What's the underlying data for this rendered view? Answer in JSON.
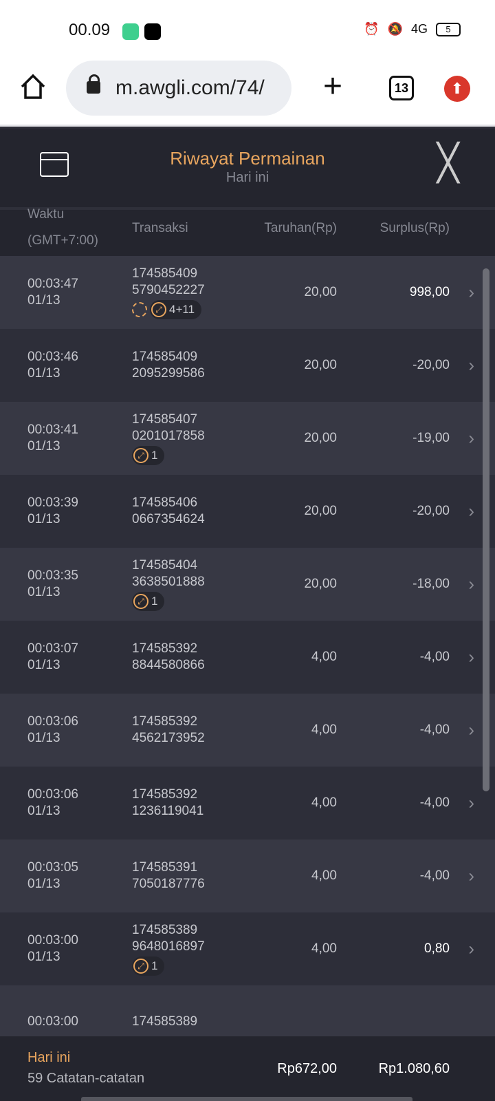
{
  "status_bar": {
    "time": "00.09",
    "network": "4G",
    "battery": "5"
  },
  "browser": {
    "url": "m.awgli.com/74/",
    "tab_count": "13"
  },
  "header": {
    "title": "Riwayat Permainan",
    "subtitle": "Hari ini"
  },
  "columns": {
    "time": "Waktu",
    "tz": "(GMT+7:00)",
    "tx": "Transaksi",
    "bet": "Taruhan(Rp)",
    "surplus": "Surplus(Rp)"
  },
  "rows": [
    {
      "time": "00:03:47",
      "date": "01/13",
      "tx1": "174585409",
      "tx2": "5790452227",
      "bet": "20,00",
      "surplus": "998,00",
      "positive": true,
      "refresh": true,
      "badge": "4+11"
    },
    {
      "time": "00:03:46",
      "date": "01/13",
      "tx1": "174585409",
      "tx2": "2095299586",
      "bet": "20,00",
      "surplus": "-20,00"
    },
    {
      "time": "00:03:41",
      "date": "01/13",
      "tx1": "174585407",
      "tx2": "0201017858",
      "bet": "20,00",
      "surplus": "-19,00",
      "badge": "1"
    },
    {
      "time": "00:03:39",
      "date": "01/13",
      "tx1": "174585406",
      "tx2": "0667354624",
      "bet": "20,00",
      "surplus": "-20,00"
    },
    {
      "time": "00:03:35",
      "date": "01/13",
      "tx1": "174585404",
      "tx2": "3638501888",
      "bet": "20,00",
      "surplus": "-18,00",
      "badge": "1"
    },
    {
      "time": "00:03:07",
      "date": "01/13",
      "tx1": "174585392",
      "tx2": "8844580866",
      "bet": "4,00",
      "surplus": "-4,00"
    },
    {
      "time": "00:03:06",
      "date": "01/13",
      "tx1": "174585392",
      "tx2": "4562173952",
      "bet": "4,00",
      "surplus": "-4,00"
    },
    {
      "time": "00:03:06",
      "date": "01/13",
      "tx1": "174585392",
      "tx2": "1236119041",
      "bet": "4,00",
      "surplus": "-4,00"
    },
    {
      "time": "00:03:05",
      "date": "01/13",
      "tx1": "174585391",
      "tx2": "7050187776",
      "bet": "4,00",
      "surplus": "-4,00"
    },
    {
      "time": "00:03:00",
      "date": "01/13",
      "tx1": "174585389",
      "tx2": "9648016897",
      "bet": "4,00",
      "surplus": "0,80",
      "positive": true,
      "badge": "1"
    },
    {
      "time": "00:03:00",
      "date": "",
      "tx1": "174585389",
      "tx2": "",
      "bet": "",
      "surplus": ""
    }
  ],
  "footer": {
    "period": "Hari ini",
    "records": "59 Catatan-catatan",
    "total_bet": "Rp672,00",
    "total_surplus": "Rp1.080,60"
  },
  "colors": {
    "accent": "#e8a55e",
    "background": "#2c2d37"
  }
}
